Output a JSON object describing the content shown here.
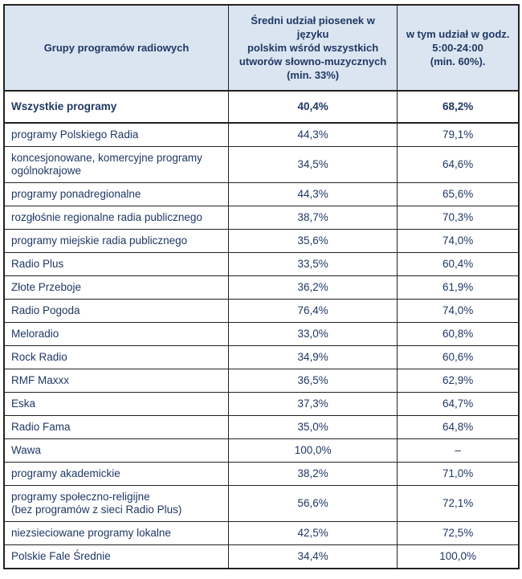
{
  "colors": {
    "header_bg": "#dbe5f1",
    "text": "#1f3864",
    "border": "#222222"
  },
  "table": {
    "columns": [
      {
        "label": "Grupy programów radiowych"
      },
      {
        "label": "Średni udział piosenek w języku\npolskim wśród wszystkich\nutworów słowno-muzycznych\n(min. 33%)"
      },
      {
        "label": "w tym udział w godz.\n5:00-24:00\n(min. 60%)."
      }
    ],
    "rows": [
      {
        "label": "Wszystkie programy",
        "share_all": "40,4%",
        "share_daytime": "68,2%",
        "bold": true
      },
      {
        "label": "programy Polskiego Radia",
        "share_all": "44,3%",
        "share_daytime": "79,1%",
        "bold": false
      },
      {
        "label": "koncesjonowane, komercyjne programy\nogólnokrajowe",
        "share_all": "34,5%",
        "share_daytime": "64,6%",
        "bold": false
      },
      {
        "label": "programy ponadregionalne",
        "share_all": "44,3%",
        "share_daytime": "65,6%",
        "bold": false
      },
      {
        "label": "rozgłośnie regionalne radia publicznego",
        "share_all": "38,7%",
        "share_daytime": "70,3%",
        "bold": false
      },
      {
        "label": "programy miejskie radia publicznego",
        "share_all": "35,6%",
        "share_daytime": "74,0%",
        "bold": false
      },
      {
        "label": "Radio Plus",
        "share_all": "33,5%",
        "share_daytime": "60,4%",
        "bold": false
      },
      {
        "label": "Złote Przeboje",
        "share_all": "36,2%",
        "share_daytime": "61,9%",
        "bold": false
      },
      {
        "label": "Radio Pogoda",
        "share_all": "76,4%",
        "share_daytime": "74,0%",
        "bold": false
      },
      {
        "label": "Meloradio",
        "share_all": "33,0%",
        "share_daytime": "60,8%",
        "bold": false
      },
      {
        "label": "Rock Radio",
        "share_all": "34,9%",
        "share_daytime": "60,6%",
        "bold": false
      },
      {
        "label": "RMF Maxxx",
        "share_all": "36,5%",
        "share_daytime": "62,9%",
        "bold": false
      },
      {
        "label": "Eska",
        "share_all": "37,3%",
        "share_daytime": "64,7%",
        "bold": false
      },
      {
        "label": "Radio Fama",
        "share_all": "35,0%",
        "share_daytime": "64,8%",
        "bold": false
      },
      {
        "label": "Wawa",
        "share_all": "100,0%",
        "share_daytime": "–",
        "bold": false
      },
      {
        "label": "programy akademickie",
        "share_all": "38,2%",
        "share_daytime": "71,0%",
        "bold": false
      },
      {
        "label": "programy społeczno-religijne\n(bez programów z sieci Radio Plus)",
        "share_all": "56,6%",
        "share_daytime": "72,1%",
        "bold": false
      },
      {
        "label": "niezsieciowane programy lokalne",
        "share_all": "42,5%",
        "share_daytime": "72,5%",
        "bold": false
      },
      {
        "label": "Polskie Fale Średnie",
        "share_all": "34,4%",
        "share_daytime": "100,0%",
        "bold": false
      }
    ]
  },
  "chart_data": {
    "type": "table",
    "title": "",
    "columns": [
      "Grupy programów radiowych",
      "Średni udział piosenek w języku polskim wśród wszystkich utworów słowno-muzycznych (min. 33%)",
      "w tym udział w godz. 5:00-24:00 (min. 60%)."
    ],
    "rows": [
      [
        "Wszystkie programy",
        "40,4%",
        "68,2%"
      ],
      [
        "programy Polskiego Radia",
        "44,3%",
        "79,1%"
      ],
      [
        "koncesjonowane, komercyjne programy ogólnokrajowe",
        "34,5%",
        "64,6%"
      ],
      [
        "programy ponadregionalne",
        "44,3%",
        "65,6%"
      ],
      [
        "rozgłośnie regionalne radia publicznego",
        "38,7%",
        "70,3%"
      ],
      [
        "programy miejskie radia publicznego",
        "35,6%",
        "74,0%"
      ],
      [
        "Radio Plus",
        "33,5%",
        "60,4%"
      ],
      [
        "Złote Przeboje",
        "36,2%",
        "61,9%"
      ],
      [
        "Radio Pogoda",
        "76,4%",
        "74,0%"
      ],
      [
        "Meloradio",
        "33,0%",
        "60,8%"
      ],
      [
        "Rock Radio",
        "34,9%",
        "60,6%"
      ],
      [
        "RMF Maxxx",
        "36,5%",
        "62,9%"
      ],
      [
        "Eska",
        "37,3%",
        "64,7%"
      ],
      [
        "Radio Fama",
        "35,0%",
        "64,8%"
      ],
      [
        "Wawa",
        "100,0%",
        "–"
      ],
      [
        "programy akademickie",
        "38,2%",
        "71,0%"
      ],
      [
        "programy społeczno-religijne (bez programów z sieci Radio Plus)",
        "56,6%",
        "72,1%"
      ],
      [
        "niezsieciowane programy lokalne",
        "42,5%",
        "72,5%"
      ],
      [
        "Polskie Fale Średnie",
        "34,4%",
        "100,0%"
      ]
    ]
  }
}
